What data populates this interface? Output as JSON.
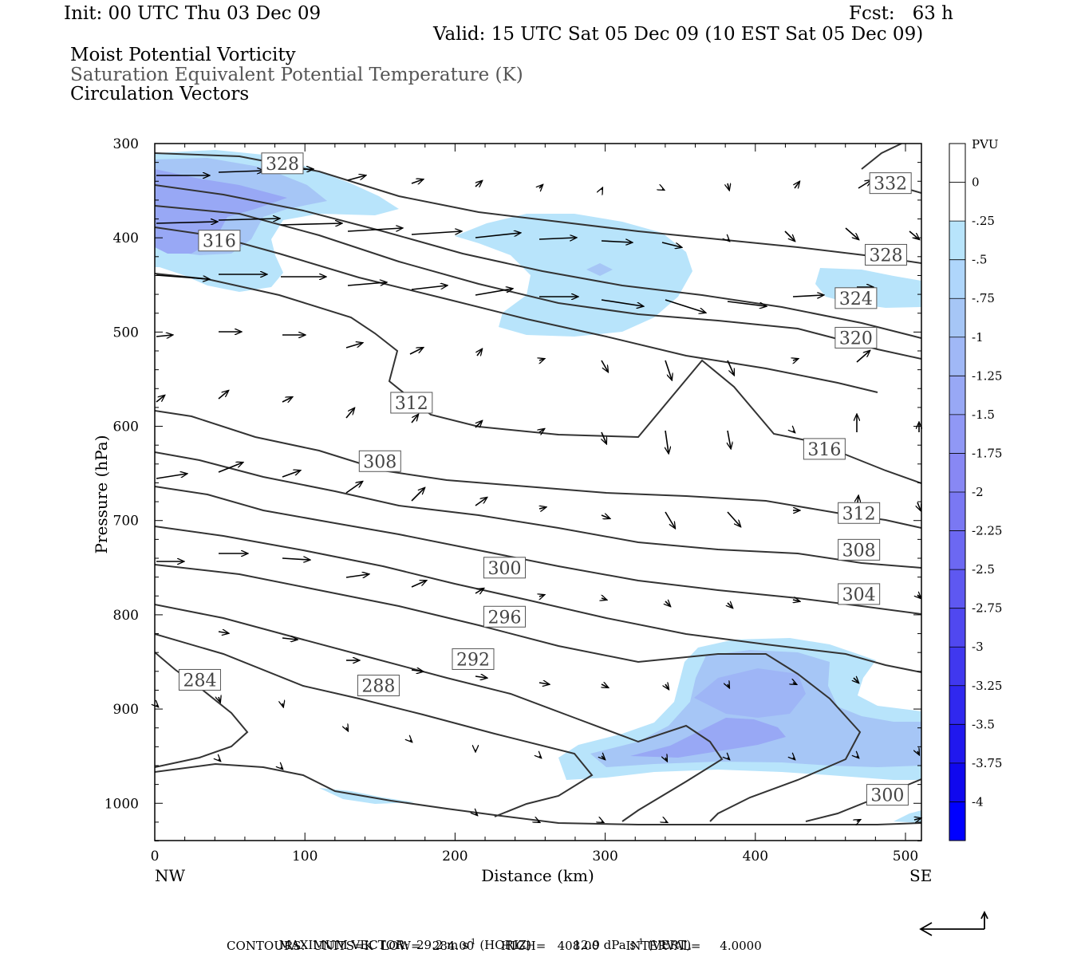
{
  "header": {
    "init": "Init: 00 UTC Thu 03 Dec 09",
    "fcst": "Fcst:   63 h",
    "valid": "Valid: 15 UTC Sat 05 Dec 09 (10 EST Sat 05 Dec 09)",
    "field1": "Moist Potential Vorticity",
    "field2": "Saturation Equivalent Potential Temperature (K)",
    "field3": "Circulation Vectors"
  },
  "footer": {
    "max_vector_label": "MAXIMUM VECTOR:",
    "max_horiz": "29.2 m s",
    "horiz_exp": "-1",
    "horiz_tag": "(HORIZ)",
    "max_vert": "12.9 dPa s",
    "vert_exp": "-1",
    "vert_tag": "(VERT)",
    "contours": "CONTOURS:  UNITS=K  LOW=   284.00       HIGH=   408.00       INTERVAL=     4.0000"
  },
  "colors": {
    "contour": "#333333",
    "shade_light": "#b8e4fb",
    "shade_mid": "#a6c6f6",
    "shade_dark": "#98a8f5"
  },
  "chart_data": {
    "type": "cross-section",
    "xlabel": "Distance (km)",
    "ylabel": "Pressure (hPa)",
    "x_ticks": [
      0,
      100,
      200,
      300,
      400,
      500
    ],
    "y_ticks": [
      300,
      400,
      500,
      600,
      700,
      800,
      900,
      1000
    ],
    "xlim": [
      0,
      510
    ],
    "ylim": [
      300,
      1040
    ],
    "x_end_labels": {
      "left": "NW",
      "right": "SE"
    },
    "colorbar": {
      "unit": "PVU",
      "labels": [
        "0",
        "-.25",
        "-.5",
        "-.75",
        "-1",
        "-1.25",
        "-1.5",
        "-1.75",
        "-2",
        "-2.25",
        "-2.5",
        "-2.75",
        "-3",
        "-3.25",
        "-3.5",
        "-3.75",
        "-4"
      ],
      "colors": [
        "#ffffff",
        "#ffffff",
        "#b8e4fb",
        "#afd6fb",
        "#a6c6f6",
        "#a0b8f6",
        "#98a8f5",
        "#9098f5",
        "#8888f4",
        "#7a78f3",
        "#6c68f2",
        "#5e58f1",
        "#5048f0",
        "#4038ef",
        "#3028ef",
        "#2018ee",
        "#1008ee",
        "#0000ff"
      ]
    },
    "contour_labels": [
      {
        "text": "328",
        "x": 85,
        "y": 321
      },
      {
        "text": "316",
        "x": 43,
        "y": 403
      },
      {
        "text": "332",
        "x": 490,
        "y": 342
      },
      {
        "text": "328",
        "x": 487,
        "y": 418
      },
      {
        "text": "324",
        "x": 467,
        "y": 464
      },
      {
        "text": "320",
        "x": 467,
        "y": 506
      },
      {
        "text": "312",
        "x": 171,
        "y": 575
      },
      {
        "text": "316",
        "x": 446,
        "y": 624
      },
      {
        "text": "308",
        "x": 150,
        "y": 637
      },
      {
        "text": "312",
        "x": 469,
        "y": 692
      },
      {
        "text": "308",
        "x": 469,
        "y": 731
      },
      {
        "text": "304",
        "x": 469,
        "y": 778
      },
      {
        "text": "300",
        "x": 233,
        "y": 750
      },
      {
        "text": "296",
        "x": 233,
        "y": 802
      },
      {
        "text": "292",
        "x": 212,
        "y": 847
      },
      {
        "text": "288",
        "x": 149,
        "y": 875
      },
      {
        "text": "284",
        "x": 30,
        "y": 869
      },
      {
        "text": "300",
        "x": 488,
        "y": 991
      }
    ]
  }
}
